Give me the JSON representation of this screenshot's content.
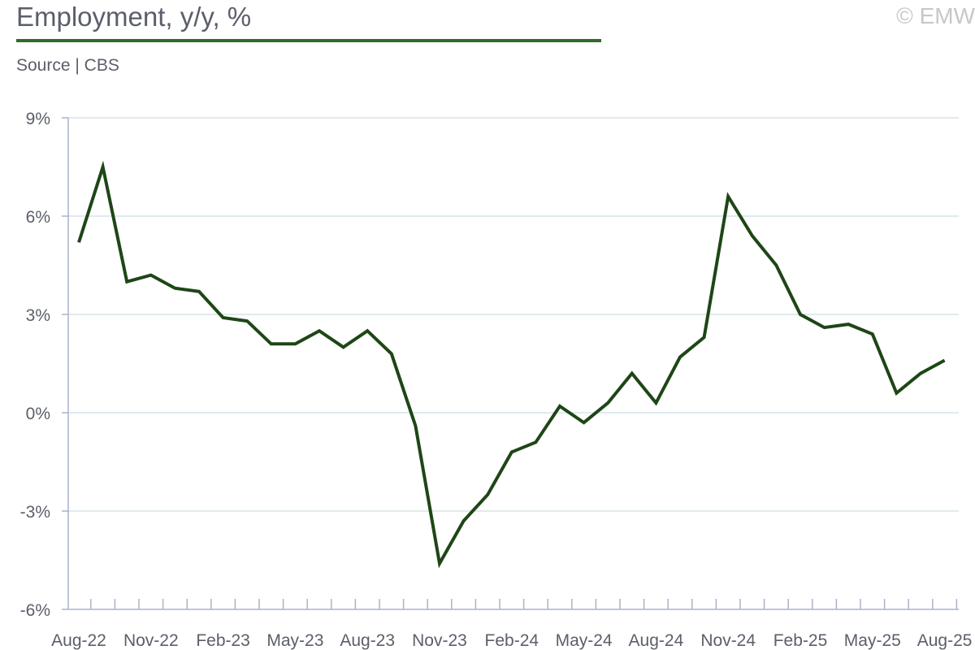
{
  "header": {
    "title": "Employment, y/y, %",
    "source": "Source | CBS",
    "watermark": "© EMW"
  },
  "colors": {
    "line": "#1e4616",
    "accent_rule": "#2f6b2a",
    "grid": "#d6e3ea",
    "axis": "#a9b4c8",
    "text": "#5b5f6a",
    "watermark": "#c5c7cb"
  },
  "chart_data": {
    "type": "line",
    "title": "Employment, y/y, %",
    "subtitle": "Source | CBS",
    "xlabel": "",
    "ylabel": "",
    "ylim": [
      -6,
      9
    ],
    "yticks": [
      -6,
      -3,
      0,
      3,
      6,
      9
    ],
    "ytick_labels": [
      "-6%",
      "-3%",
      "0%",
      "3%",
      "6%",
      "9%"
    ],
    "grid": true,
    "legend": "none",
    "x": [
      "Aug-22",
      "Sep-22",
      "Oct-22",
      "Nov-22",
      "Dec-22",
      "Jan-23",
      "Feb-23",
      "Mar-23",
      "Apr-23",
      "May-23",
      "Jun-23",
      "Jul-23",
      "Aug-23",
      "Sep-23",
      "Oct-23",
      "Nov-23",
      "Dec-23",
      "Jan-24",
      "Feb-24",
      "Mar-24",
      "Apr-24",
      "May-24",
      "Jun-24",
      "Jul-24",
      "Aug-24",
      "Sep-24",
      "Oct-24",
      "Nov-24",
      "Dec-24",
      "Jan-25",
      "Feb-25",
      "Mar-25",
      "Apr-25",
      "May-25",
      "Jun-25",
      "Jul-25",
      "Aug-25"
    ],
    "xtick_labels": [
      "Aug-22",
      "Nov-22",
      "Feb-23",
      "May-23",
      "Aug-23",
      "Nov-23",
      "Feb-24",
      "May-24",
      "Aug-24",
      "Nov-24",
      "Feb-25",
      "May-25",
      "Aug-25"
    ],
    "series": [
      {
        "values": [
          5.2,
          7.5,
          4.0,
          4.2,
          3.8,
          3.7,
          2.9,
          2.8,
          2.1,
          2.1,
          2.5,
          2.0,
          2.5,
          1.8,
          -0.4,
          -4.6,
          -3.3,
          -2.5,
          -1.2,
          -0.9,
          0.2,
          -0.3,
          0.3,
          1.2,
          0.3,
          1.7,
          2.3,
          6.6,
          5.4,
          4.5,
          3.0,
          2.6,
          2.7,
          2.4,
          0.6,
          1.2,
          1.6
        ]
      }
    ]
  }
}
